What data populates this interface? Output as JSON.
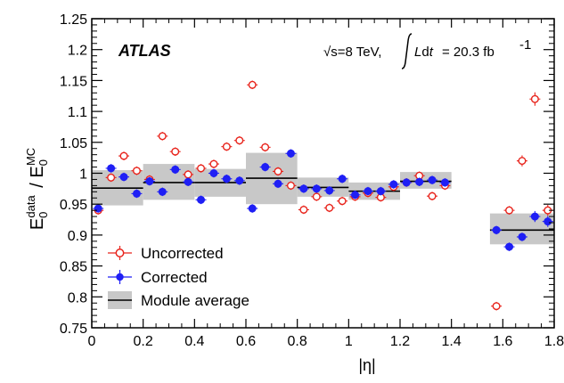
{
  "chart_data": {
    "type": "scatter",
    "experiment_label": "ATLAS",
    "energy_label": {
      "sqrt_s": "√s=8 TeV,",
      "lumi_text": "= 20.3 fb"
    },
    "xlabel": "|η|",
    "ylabel": "E0data / E0MC",
    "xlim": [
      0,
      1.8
    ],
    "ylim": [
      0.75,
      1.25
    ],
    "xticks": [
      "0",
      "0.2",
      "0.4",
      "0.6",
      "0.8",
      "1",
      "1.2",
      "1.4",
      "1.6",
      "1.8"
    ],
    "yticks": [
      "0.75",
      "0.8",
      "0.85",
      "0.9",
      "0.95",
      "1",
      "1.05",
      "1.1",
      "1.15",
      "1.2",
      "1.25"
    ],
    "grid": false,
    "legend": {
      "position": "bottom-left",
      "entries": [
        "Uncorrected",
        "Corrected",
        "Module average"
      ]
    },
    "colors": {
      "uncorrected": "#e8231b",
      "corrected": "#1f1ff5",
      "band": "#c8c8c8",
      "average": "#000000"
    },
    "series": [
      {
        "name": "Uncorrected",
        "x": [
          0.025,
          0.075,
          0.125,
          0.175,
          0.225,
          0.275,
          0.325,
          0.375,
          0.425,
          0.475,
          0.525,
          0.575,
          0.625,
          0.675,
          0.725,
          0.775,
          0.825,
          0.875,
          0.925,
          0.975,
          1.025,
          1.075,
          1.125,
          1.175,
          1.225,
          1.275,
          1.325,
          1.375,
          1.575,
          1.625,
          1.675,
          1.725,
          1.775
        ],
        "y": [
          0.94,
          0.993,
          1.028,
          1.004,
          0.99,
          1.06,
          1.035,
          0.998,
          1.008,
          1.015,
          1.043,
          1.053,
          1.143,
          1.042,
          1.003,
          0.98,
          0.941,
          0.962,
          0.944,
          0.955,
          0.962,
          0.968,
          0.961,
          0.978,
          0.985,
          0.996,
          0.963,
          0.98,
          0.785,
          0.94,
          1.02,
          1.12,
          0.94
        ],
        "yerr": [
          0.004,
          0.004,
          0.004,
          0.004,
          0.004,
          0.004,
          0.004,
          0.004,
          0.004,
          0.004,
          0.004,
          0.004,
          0.004,
          0.004,
          0.004,
          0.004,
          0.004,
          0.004,
          0.004,
          0.004,
          0.004,
          0.004,
          0.004,
          0.004,
          0.004,
          0.004,
          0.004,
          0.004,
          0.004,
          0.004,
          0.006,
          0.008,
          0.006
        ]
      },
      {
        "name": "Corrected",
        "x": [
          0.025,
          0.075,
          0.125,
          0.175,
          0.225,
          0.275,
          0.325,
          0.375,
          0.425,
          0.475,
          0.525,
          0.575,
          0.625,
          0.675,
          0.725,
          0.775,
          0.825,
          0.875,
          0.925,
          0.975,
          1.025,
          1.075,
          1.125,
          1.175,
          1.225,
          1.275,
          1.325,
          1.375,
          1.575,
          1.625,
          1.675,
          1.725,
          1.775
        ],
        "y": [
          0.943,
          1.008,
          0.994,
          0.967,
          0.987,
          0.97,
          1.006,
          0.986,
          0.957,
          1.0,
          0.991,
          0.988,
          0.943,
          1.01,
          0.983,
          1.032,
          0.975,
          0.975,
          0.972,
          0.991,
          0.965,
          0.971,
          0.971,
          0.982,
          0.985,
          0.986,
          0.989,
          0.985,
          0.908,
          0.881,
          0.897,
          0.93,
          0.922
        ],
        "yerr": [
          0.004,
          0.004,
          0.004,
          0.004,
          0.004,
          0.004,
          0.004,
          0.004,
          0.004,
          0.004,
          0.004,
          0.004,
          0.004,
          0.004,
          0.004,
          0.004,
          0.004,
          0.004,
          0.004,
          0.004,
          0.004,
          0.004,
          0.004,
          0.004,
          0.004,
          0.004,
          0.004,
          0.004,
          0.004,
          0.004,
          0.004,
          0.006,
          0.006
        ]
      }
    ],
    "module_average": [
      {
        "x0": 0.0,
        "x1": 0.2,
        "value": 0.976,
        "lo": 0.948,
        "hi": 1.005
      },
      {
        "x0": 0.2,
        "x1": 0.4,
        "value": 0.985,
        "lo": 0.957,
        "hi": 1.015
      },
      {
        "x0": 0.4,
        "x1": 0.6,
        "value": 0.985,
        "lo": 0.962,
        "hi": 1.007
      },
      {
        "x0": 0.6,
        "x1": 0.8,
        "value": 0.992,
        "lo": 0.95,
        "hi": 1.033
      },
      {
        "x0": 0.8,
        "x1": 1.0,
        "value": 0.977,
        "lo": 0.962,
        "hi": 0.993
      },
      {
        "x0": 1.0,
        "x1": 1.2,
        "value": 0.971,
        "lo": 0.957,
        "hi": 0.985
      },
      {
        "x0": 1.2,
        "x1": 1.4,
        "value": 0.987,
        "lo": 0.975,
        "hi": 1.002
      },
      {
        "x0": 1.55,
        "x1": 1.8,
        "value": 0.908,
        "lo": 0.885,
        "hi": 0.935
      }
    ]
  }
}
